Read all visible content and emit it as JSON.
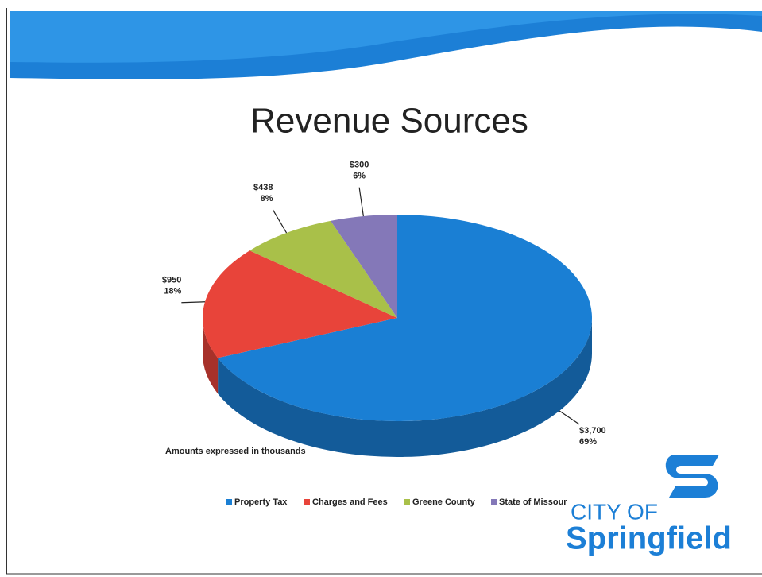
{
  "title": "Revenue Sources",
  "chart_data": {
    "type": "pie",
    "categories": [
      "Property Tax",
      "Charges and Fees",
      "Greene County",
      "State of Missour"
    ],
    "values": [
      3700,
      950,
      438,
      300
    ],
    "value_labels": [
      "$3,700",
      "$950",
      "$438",
      "$300"
    ],
    "percents": [
      69,
      18,
      8,
      6
    ],
    "percent_labels": [
      "69%",
      "18%",
      "8%",
      "6%"
    ],
    "colors": [
      "#1a7fd4",
      "#e8443a",
      "#a9c049",
      "#8478b8"
    ],
    "legend": "bottom"
  },
  "note": "Amounts expressed in thousands",
  "logo": {
    "line1": "CITY OF",
    "line2": "Springfield"
  }
}
